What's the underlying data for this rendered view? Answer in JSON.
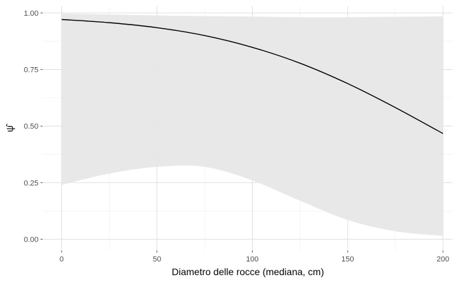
{
  "chart_data": {
    "type": "line",
    "title": "",
    "xlabel": "Diametro delle rocce (mediana, cm)",
    "ylabel": "ψ̂",
    "xlim": [
      -10,
      205
    ],
    "ylim": [
      -0.05,
      1.03
    ],
    "x_ticks": [
      0,
      50,
      100,
      150,
      200
    ],
    "x_tick_labels": [
      "0",
      "50",
      "100",
      "150",
      "200"
    ],
    "y_ticks": [
      0.0,
      0.25,
      0.5,
      0.75,
      1.0
    ],
    "y_tick_labels": [
      "0.00",
      "0.25",
      "0.50",
      "0.75",
      "1.00"
    ],
    "grid": true,
    "series": [
      {
        "x": [
          0,
          25,
          50,
          75,
          100,
          125,
          150,
          175,
          200
        ],
        "y": [
          0.971,
          0.957,
          0.935,
          0.9,
          0.848,
          0.778,
          0.688,
          0.582,
          0.467
        ],
        "ci_lower": [
          0.24,
          0.29,
          0.32,
          0.32,
          0.26,
          0.17,
          0.085,
          0.035,
          0.015
        ],
        "ci_upper": [
          0.997,
          0.993,
          0.989,
          0.986,
          0.984,
          0.981,
          0.981,
          0.983,
          0.985
        ]
      }
    ],
    "colors": {
      "line": "#000000",
      "ribbon": "#e6e6e6",
      "grid_major": "#dcdcdc",
      "grid_minor": "#eeeeee"
    }
  }
}
